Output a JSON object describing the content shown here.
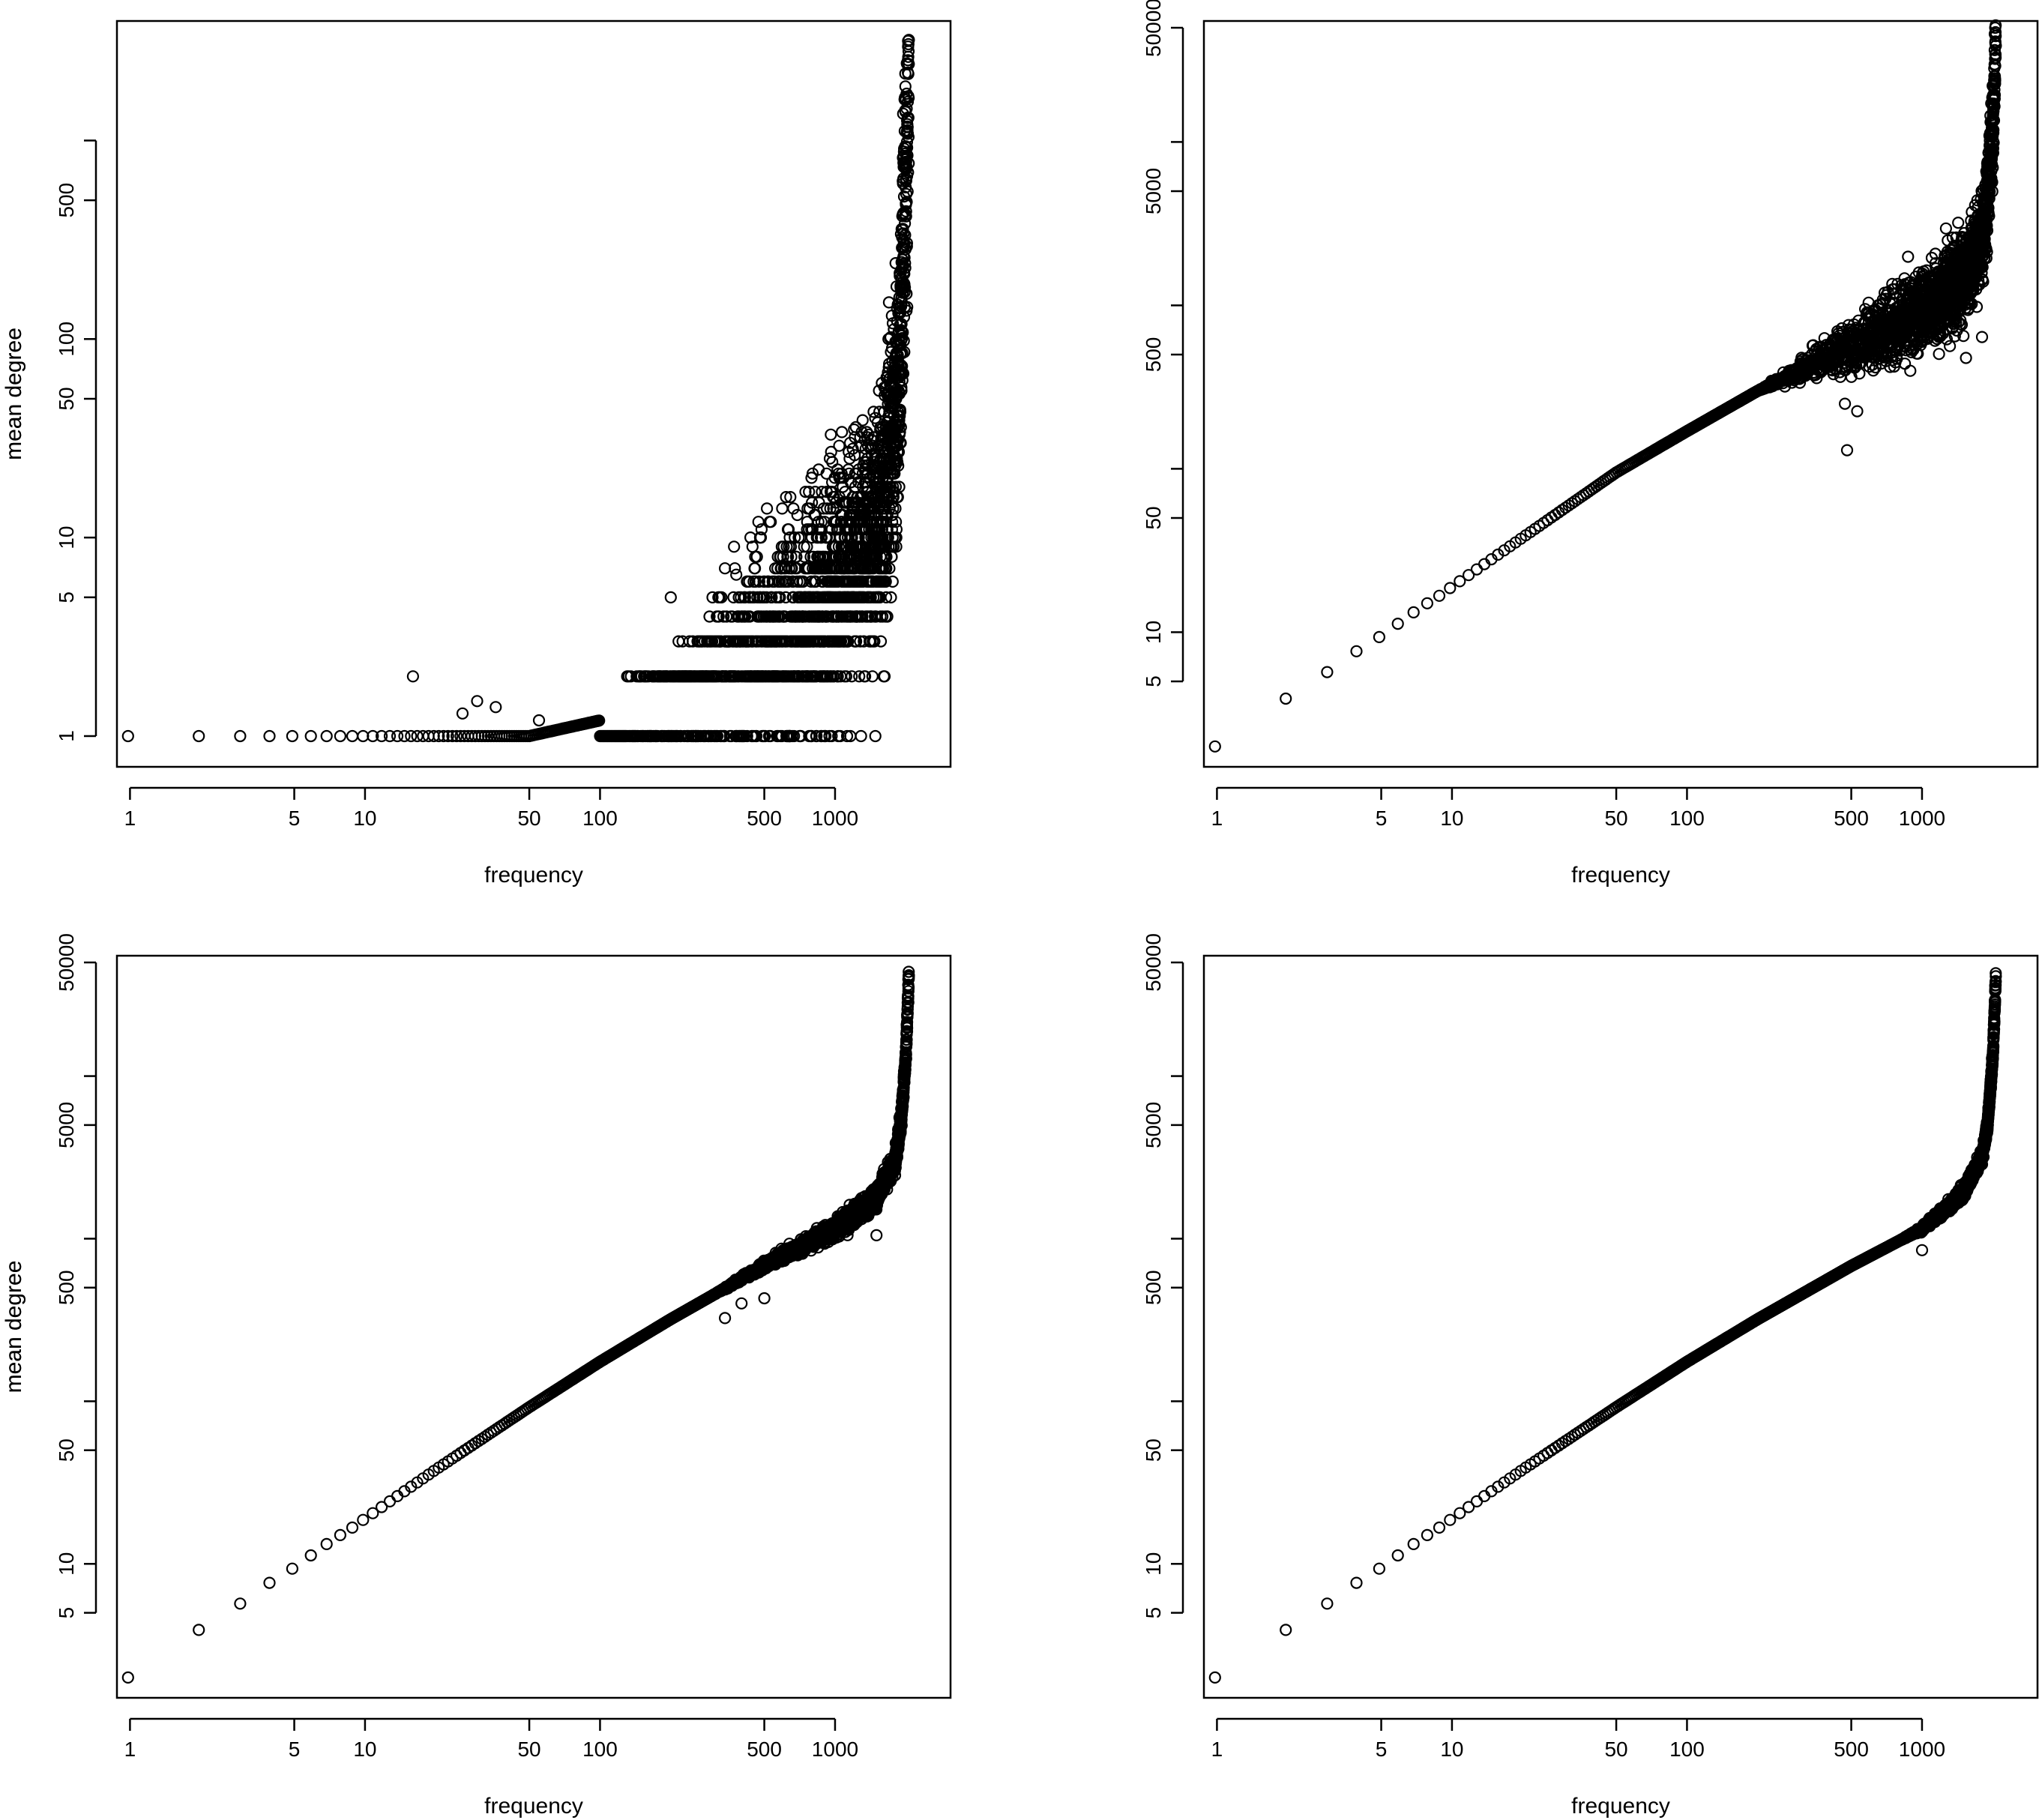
{
  "chart_data": [
    {
      "type": "scatter",
      "panel": "top-left",
      "xlabel": "frequency",
      "ylabel": "mean degree",
      "log_x": true,
      "log_y": true,
      "xlim": [
        0.88,
        3100
      ],
      "ylim": [
        0.7,
        4000
      ],
      "x_ticks": [
        1,
        5,
        10,
        50,
        100,
        500,
        1000
      ],
      "x_tick_labels": [
        "1",
        "5",
        "10",
        "50",
        "100",
        "500",
        "1000"
      ],
      "y_ticks": [
        1,
        5,
        10,
        50,
        100,
        500,
        1000
      ],
      "y_tick_labels": [
        "1",
        "5",
        "10",
        "50",
        "100",
        "500",
        ""
      ],
      "point_style": "open-circle",
      "grid": false,
      "curve": {
        "description": "degree flat at 1 for low frequency, scattered rise beyond ~100, steep rise near max frequency",
        "x": [
          1,
          2,
          3,
          4,
          5,
          6,
          7,
          8,
          9,
          10,
          12,
          15,
          20,
          30,
          50,
          100,
          150,
          200,
          300,
          500,
          700,
          1000,
          1300,
          1600,
          1750,
          1850,
          1900,
          1940,
          1970,
          2000,
          2030,
          2060
        ],
        "y": [
          1,
          1,
          1,
          1,
          1,
          1,
          1,
          1,
          1,
          1,
          1,
          1,
          1,
          1,
          1,
          1.2,
          1.4,
          1.7,
          2.2,
          3,
          4,
          6,
          9,
          16,
          30,
          55,
          100,
          200,
          400,
          700,
          1200,
          2100
        ]
      },
      "scatter_band": {
        "x_start": 100,
        "spread_decades": 0.5
      },
      "outliers": [
        [
          16,
          2
        ],
        [
          30,
          1.5
        ],
        [
          36,
          1.4
        ],
        [
          26,
          1.3
        ],
        [
          55,
          1.2
        ],
        [
          200,
          5
        ],
        [
          340,
          7
        ],
        [
          380,
          6.5
        ],
        [
          700,
          10
        ],
        [
          1000,
          12
        ]
      ],
      "num_points": 2100
    },
    {
      "type": "scatter",
      "panel": "top-right",
      "xlabel": "frequency",
      "ylabel": "mean degree",
      "log_x": true,
      "log_y": true,
      "xlim": [
        0.88,
        3100
      ],
      "ylim": [
        1.5,
        55000
      ],
      "x_ticks": [
        1,
        5,
        10,
        50,
        100,
        500,
        1000
      ],
      "x_tick_labels": [
        "1",
        "5",
        "10",
        "50",
        "100",
        "500",
        "1000"
      ],
      "y_ticks": [
        5,
        10,
        50,
        100,
        500,
        1000,
        5000,
        10000,
        50000
      ],
      "y_tick_labels": [
        "5",
        "10",
        "50",
        "",
        "500",
        "",
        "5000",
        "",
        "50000"
      ],
      "point_style": "open-circle",
      "grid": false,
      "curve": {
        "description": "power-law line with scatter at high frequency, sharp upturn near max",
        "x": [
          1,
          2,
          3,
          4,
          5,
          6,
          7,
          8,
          9,
          10,
          20,
          50,
          100,
          200,
          500,
          1000,
          1500,
          1800,
          1900,
          1950,
          2000,
          2030,
          2060
        ],
        "y": [
          2,
          4,
          5.8,
          7.8,
          9.5,
          11.5,
          13.5,
          15.3,
          17,
          19,
          38,
          95,
          170,
          300,
          560,
          900,
          1500,
          2500,
          4200,
          7000,
          12000,
          20000,
          40000
        ]
      },
      "scatter_band": {
        "x_start": 200,
        "spread_decades": 0.2
      },
      "outliers": [
        [
          1400,
          1100
        ],
        [
          1500,
          650
        ],
        [
          1800,
          640
        ],
        [
          470,
          250
        ],
        [
          530,
          225
        ],
        [
          480,
          130
        ]
      ],
      "num_points": 2100
    },
    {
      "type": "scatter",
      "panel": "bottom-left",
      "xlabel": "frequency",
      "ylabel": "mean degree",
      "log_x": true,
      "log_y": true,
      "xlim": [
        0.88,
        3100
      ],
      "ylim": [
        1.5,
        55000
      ],
      "x_ticks": [
        1,
        5,
        10,
        50,
        100,
        500,
        1000
      ],
      "x_tick_labels": [
        "1",
        "5",
        "10",
        "50",
        "100",
        "500",
        "1000"
      ],
      "y_ticks": [
        5,
        10,
        50,
        100,
        500,
        1000,
        5000,
        10000,
        50000
      ],
      "y_tick_labels": [
        "5",
        "10",
        "50",
        "",
        "500",
        "",
        "5000",
        "",
        "50000"
      ],
      "point_style": "open-circle",
      "grid": false,
      "curve": {
        "description": "tight power-law line, upturn near max frequency",
        "x": [
          1,
          2,
          3,
          4,
          5,
          6,
          7,
          8,
          9,
          10,
          20,
          50,
          100,
          200,
          500,
          1000,
          1500,
          1800,
          1900,
          1950,
          2000,
          2030,
          2060
        ],
        "y": [
          2,
          4,
          5.8,
          7.8,
          9.5,
          11.5,
          13.5,
          15.3,
          17,
          19,
          38,
          92,
          175,
          320,
          680,
          1150,
          1800,
          3000,
          5000,
          8000,
          13000,
          22000,
          42000
        ]
      },
      "scatter_band": {
        "x_start": 300,
        "spread_decades": 0.05
      },
      "outliers": [
        [
          340,
          325
        ],
        [
          500,
          430
        ],
        [
          400,
          400
        ],
        [
          1500,
          1050
        ]
      ],
      "num_points": 2100
    },
    {
      "type": "scatter",
      "panel": "bottom-right",
      "xlabel": "frequency",
      "ylabel": "mean degree",
      "log_x": true,
      "log_y": true,
      "xlim": [
        0.88,
        3100
      ],
      "ylim": [
        1.5,
        55000
      ],
      "x_ticks": [
        1,
        5,
        10,
        50,
        100,
        500,
        1000
      ],
      "x_tick_labels": [
        "1",
        "5",
        "10",
        "50",
        "100",
        "500",
        "1000"
      ],
      "y_ticks": [
        5,
        10,
        50,
        100,
        500,
        1000,
        5000,
        10000,
        50000
      ],
      "y_tick_labels": [
        "5",
        "10",
        "50",
        "",
        "500",
        "",
        "5000",
        "",
        "50000"
      ],
      "point_style": "open-circle",
      "grid": false,
      "curve": {
        "description": "very tight power-law line, upturn near max frequency",
        "x": [
          1,
          2,
          3,
          4,
          5,
          6,
          7,
          8,
          9,
          10,
          20,
          50,
          100,
          200,
          500,
          1000,
          1500,
          1800,
          1900,
          1950,
          2000,
          2030,
          2060
        ],
        "y": [
          2,
          4,
          5.8,
          7.8,
          9.5,
          11.5,
          13.5,
          15.3,
          17,
          19,
          38,
          92,
          175,
          320,
          680,
          1150,
          1900,
          3200,
          5000,
          8000,
          13000,
          22000,
          42000
        ]
      },
      "scatter_band": {
        "x_start": 800,
        "spread_decades": 0.03
      },
      "outliers": [
        [
          1000,
          850
        ]
      ],
      "num_points": 2100
    }
  ]
}
